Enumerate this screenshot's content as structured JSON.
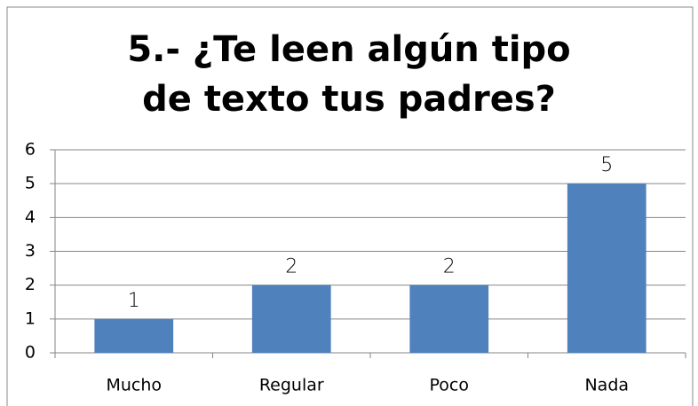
{
  "chart_data": {
    "type": "bar",
    "title": "5.- ¿Te leen algún tipo de texto tus padres?",
    "categories": [
      "Mucho",
      "Regular",
      "Poco",
      "Nada"
    ],
    "values": [
      1,
      2,
      2,
      5
    ],
    "color": "#4f81bd",
    "ylim": [
      0,
      6
    ],
    "yticks": [
      0,
      1,
      2,
      3,
      4,
      5,
      6
    ],
    "grid": true
  }
}
